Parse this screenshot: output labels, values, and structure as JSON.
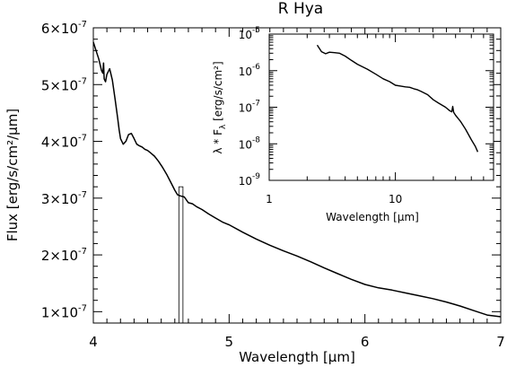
{
  "chart_data": [
    {
      "type": "line",
      "title": "R Hya",
      "xlabel": "Wavelength [μm]",
      "ylabel": "Flux [erg/s/cm²/μm]",
      "xlim": [
        4,
        7
      ],
      "ylim": [
        8e-08,
        6e-07
      ],
      "x_ticks": [
        4,
        5,
        6,
        7
      ],
      "x_tick_labels": [
        "4",
        "5",
        "6",
        "7"
      ],
      "y_ticks": [
        1e-07,
        2e-07,
        3e-07,
        4e-07,
        5e-07,
        6e-07
      ],
      "y_tick_labels": [
        {
          "mant": "1",
          "exp": "-7"
        },
        {
          "mant": "2",
          "exp": "-7"
        },
        {
          "mant": "3",
          "exp": "-7"
        },
        {
          "mant": "4",
          "exp": "-7"
        },
        {
          "mant": "5",
          "exp": "-7"
        },
        {
          "mant": "6",
          "exp": "-7"
        }
      ],
      "x_minor_step": 0.1,
      "y_minor_step": 2e-08,
      "highlight_band": {
        "x": [
          4.63,
          4.66
        ],
        "y_top": 3.2e-07
      },
      "series": [
        {
          "points": [
            [
              4.0,
              5.75e-07
            ],
            [
              4.02,
              5.6e-07
            ],
            [
              4.04,
              5.45e-07
            ],
            [
              4.06,
              5.25e-07
            ],
            [
              4.07,
              5.2e-07
            ],
            [
              4.075,
              5.38e-07
            ],
            [
              4.08,
              5.1e-07
            ],
            [
              4.09,
              5.05e-07
            ],
            [
              4.1,
              5.18e-07
            ],
            [
              4.12,
              5.28e-07
            ],
            [
              4.14,
              5.08e-07
            ],
            [
              4.16,
              4.75e-07
            ],
            [
              4.18,
              4.4e-07
            ],
            [
              4.19,
              4.2e-07
            ],
            [
              4.2,
              4.05e-07
            ],
            [
              4.22,
              3.95e-07
            ],
            [
              4.24,
              4e-07
            ],
            [
              4.26,
              4.12e-07
            ],
            [
              4.28,
              4.14e-07
            ],
            [
              4.3,
              4.05e-07
            ],
            [
              4.32,
              3.95e-07
            ],
            [
              4.34,
              3.92e-07
            ],
            [
              4.36,
              3.9e-07
            ],
            [
              4.38,
              3.86e-07
            ],
            [
              4.4,
              3.84e-07
            ],
            [
              4.42,
              3.8e-07
            ],
            [
              4.45,
              3.74e-07
            ],
            [
              4.48,
              3.65e-07
            ],
            [
              4.51,
              3.54e-07
            ],
            [
              4.54,
              3.42e-07
            ],
            [
              4.57,
              3.28e-07
            ],
            [
              4.6,
              3.14e-07
            ],
            [
              4.62,
              3.06e-07
            ],
            [
              4.64,
              3.04e-07
            ],
            [
              4.67,
              3.02e-07
            ],
            [
              4.7,
              2.92e-07
            ],
            [
              4.73,
              2.9e-07
            ],
            [
              4.76,
              2.85e-07
            ],
            [
              4.8,
              2.8e-07
            ],
            [
              4.85,
              2.72e-07
            ],
            [
              4.9,
              2.65e-07
            ],
            [
              4.95,
              2.58e-07
            ],
            [
              5.0,
              2.53e-07
            ],
            [
              5.1,
              2.4e-07
            ],
            [
              5.2,
              2.28e-07
            ],
            [
              5.3,
              2.17e-07
            ],
            [
              5.4,
              2.07e-07
            ],
            [
              5.5,
              1.98e-07
            ],
            [
              5.6,
              1.88e-07
            ],
            [
              5.7,
              1.77e-07
            ],
            [
              5.8,
              1.67e-07
            ],
            [
              5.9,
              1.57e-07
            ],
            [
              6.0,
              1.48e-07
            ],
            [
              6.1,
              1.42e-07
            ],
            [
              6.2,
              1.38e-07
            ],
            [
              6.3,
              1.33e-07
            ],
            [
              6.4,
              1.28e-07
            ],
            [
              6.5,
              1.23e-07
            ],
            [
              6.6,
              1.17e-07
            ],
            [
              6.7,
              1.1e-07
            ],
            [
              6.8,
              1.02e-07
            ],
            [
              6.9,
              9.4e-08
            ],
            [
              7.0,
              9.1e-08
            ]
          ]
        }
      ]
    },
    {
      "type": "line",
      "xlabel": "Wavelength [μm]",
      "ylabel": "λ * Fλ [erg/s/cm²]",
      "ylabel_parts": {
        "lambda": "λ",
        "star": " * F",
        "sub": "λ",
        "units": " [erg/s/cm²]"
      },
      "xscale": "log",
      "yscale": "log",
      "xlim": [
        1,
        60
      ],
      "ylim": [
        1e-09,
        1e-05
      ],
      "x_ticks": [
        1,
        10
      ],
      "x_tick_labels": [
        "1",
        "10"
      ],
      "y_ticks": [
        1e-09,
        1e-08,
        1e-07,
        1e-06,
        1e-05
      ],
      "y_tick_labels": [
        {
          "mant": "10",
          "exp": "-9"
        },
        {
          "mant": "10",
          "exp": "-8"
        },
        {
          "mant": "10",
          "exp": "-7"
        },
        {
          "mant": "10",
          "exp": "-6"
        },
        {
          "mant": "10",
          "exp": "-5"
        }
      ],
      "series": [
        {
          "points": [
            [
              2.4,
              5e-06
            ],
            [
              2.6,
              3.3e-06
            ],
            [
              2.8,
              2.9e-06
            ],
            [
              3.0,
              3.2e-06
            ],
            [
              3.3,
              3.1e-06
            ],
            [
              3.6,
              3e-06
            ],
            [
              4.0,
              2.5e-06
            ],
            [
              4.5,
              1.9e-06
            ],
            [
              5.0,
              1.5e-06
            ],
            [
              6.0,
              1.1e-06
            ],
            [
              7.0,
              8e-07
            ],
            [
              8.0,
              6e-07
            ],
            [
              9.0,
              5e-07
            ],
            [
              10.0,
              4e-07
            ],
            [
              11.0,
              3.8e-07
            ],
            [
              12.0,
              3.6e-07
            ],
            [
              13.0,
              3.5e-07
            ],
            [
              14.0,
              3.2e-07
            ],
            [
              15.0,
              3e-07
            ],
            [
              16.0,
              2.7e-07
            ],
            [
              18.0,
              2.2e-07
            ],
            [
              20.0,
              1.6e-07
            ],
            [
              22.0,
              1.3e-07
            ],
            [
              25.0,
              1e-07
            ],
            [
              27.0,
              8e-08
            ],
            [
              28.0,
              7.5e-08
            ],
            [
              28.5,
              1.05e-07
            ],
            [
              29.0,
              7.2e-08
            ],
            [
              30.0,
              6e-08
            ],
            [
              33.0,
              4e-08
            ],
            [
              36.0,
              2.5e-08
            ],
            [
              40.0,
              1.3e-08
            ],
            [
              43.0,
              8.5e-09
            ],
            [
              45.0,
              6e-09
            ]
          ]
        }
      ]
    }
  ]
}
